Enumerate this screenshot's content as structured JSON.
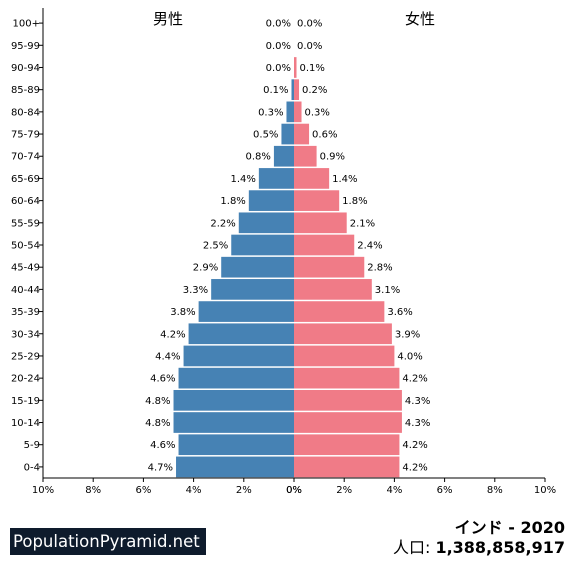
{
  "chart_data": {
    "type": "bar",
    "subtype": "population-pyramid",
    "categories": [
      "100+",
      "95-99",
      "90-94",
      "85-89",
      "80-84",
      "75-79",
      "70-74",
      "65-69",
      "60-64",
      "55-59",
      "50-54",
      "45-49",
      "40-44",
      "35-39",
      "30-34",
      "25-29",
      "20-24",
      "15-19",
      "10-14",
      "5-9",
      "0-4"
    ],
    "series": [
      {
        "name": "男性",
        "color": "#4682b4",
        "values": [
          0.0,
          0.0,
          0.0,
          0.1,
          0.3,
          0.5,
          0.8,
          1.4,
          1.8,
          2.2,
          2.5,
          2.9,
          3.3,
          3.8,
          4.2,
          4.4,
          4.6,
          4.8,
          4.8,
          4.6,
          4.7
        ],
        "labels": [
          "0.0%",
          "0.0%",
          "0.0%",
          "0.1%",
          "0.3%",
          "0.5%",
          "0.8%",
          "1.4%",
          "1.8%",
          "2.2%",
          "2.5%",
          "2.9%",
          "3.3%",
          "3.8%",
          "4.2%",
          "4.4%",
          "4.6%",
          "4.8%",
          "4.8%",
          "4.6%",
          "4.7%"
        ]
      },
      {
        "name": "女性",
        "color": "#f07b87",
        "values": [
          0.0,
          0.0,
          0.1,
          0.2,
          0.3,
          0.6,
          0.9,
          1.4,
          1.8,
          2.1,
          2.4,
          2.8,
          3.1,
          3.6,
          3.9,
          4.0,
          4.2,
          4.3,
          4.3,
          4.2,
          4.2
        ],
        "labels": [
          "0.0%",
          "0.0%",
          "0.1%",
          "0.2%",
          "0.3%",
          "0.6%",
          "0.9%",
          "1.4%",
          "1.8%",
          "2.1%",
          "2.4%",
          "2.8%",
          "3.1%",
          "3.6%",
          "3.9%",
          "4.0%",
          "4.2%",
          "4.3%",
          "4.3%",
          "4.2%",
          "4.2%"
        ]
      }
    ],
    "xlim": [
      0,
      10
    ],
    "x_ticks_left": [
      "10%",
      "8%",
      "6%",
      "4%",
      "2%",
      "0%"
    ],
    "x_ticks_right": [
      "0%",
      "2%",
      "4%",
      "6%",
      "8%",
      "10%"
    ],
    "grid": false
  },
  "footer": {
    "brand": "PopulationPyramid.net",
    "country_year": "インド - 2020",
    "population_label": "人口: ",
    "population_value": "1,388,858,917"
  }
}
